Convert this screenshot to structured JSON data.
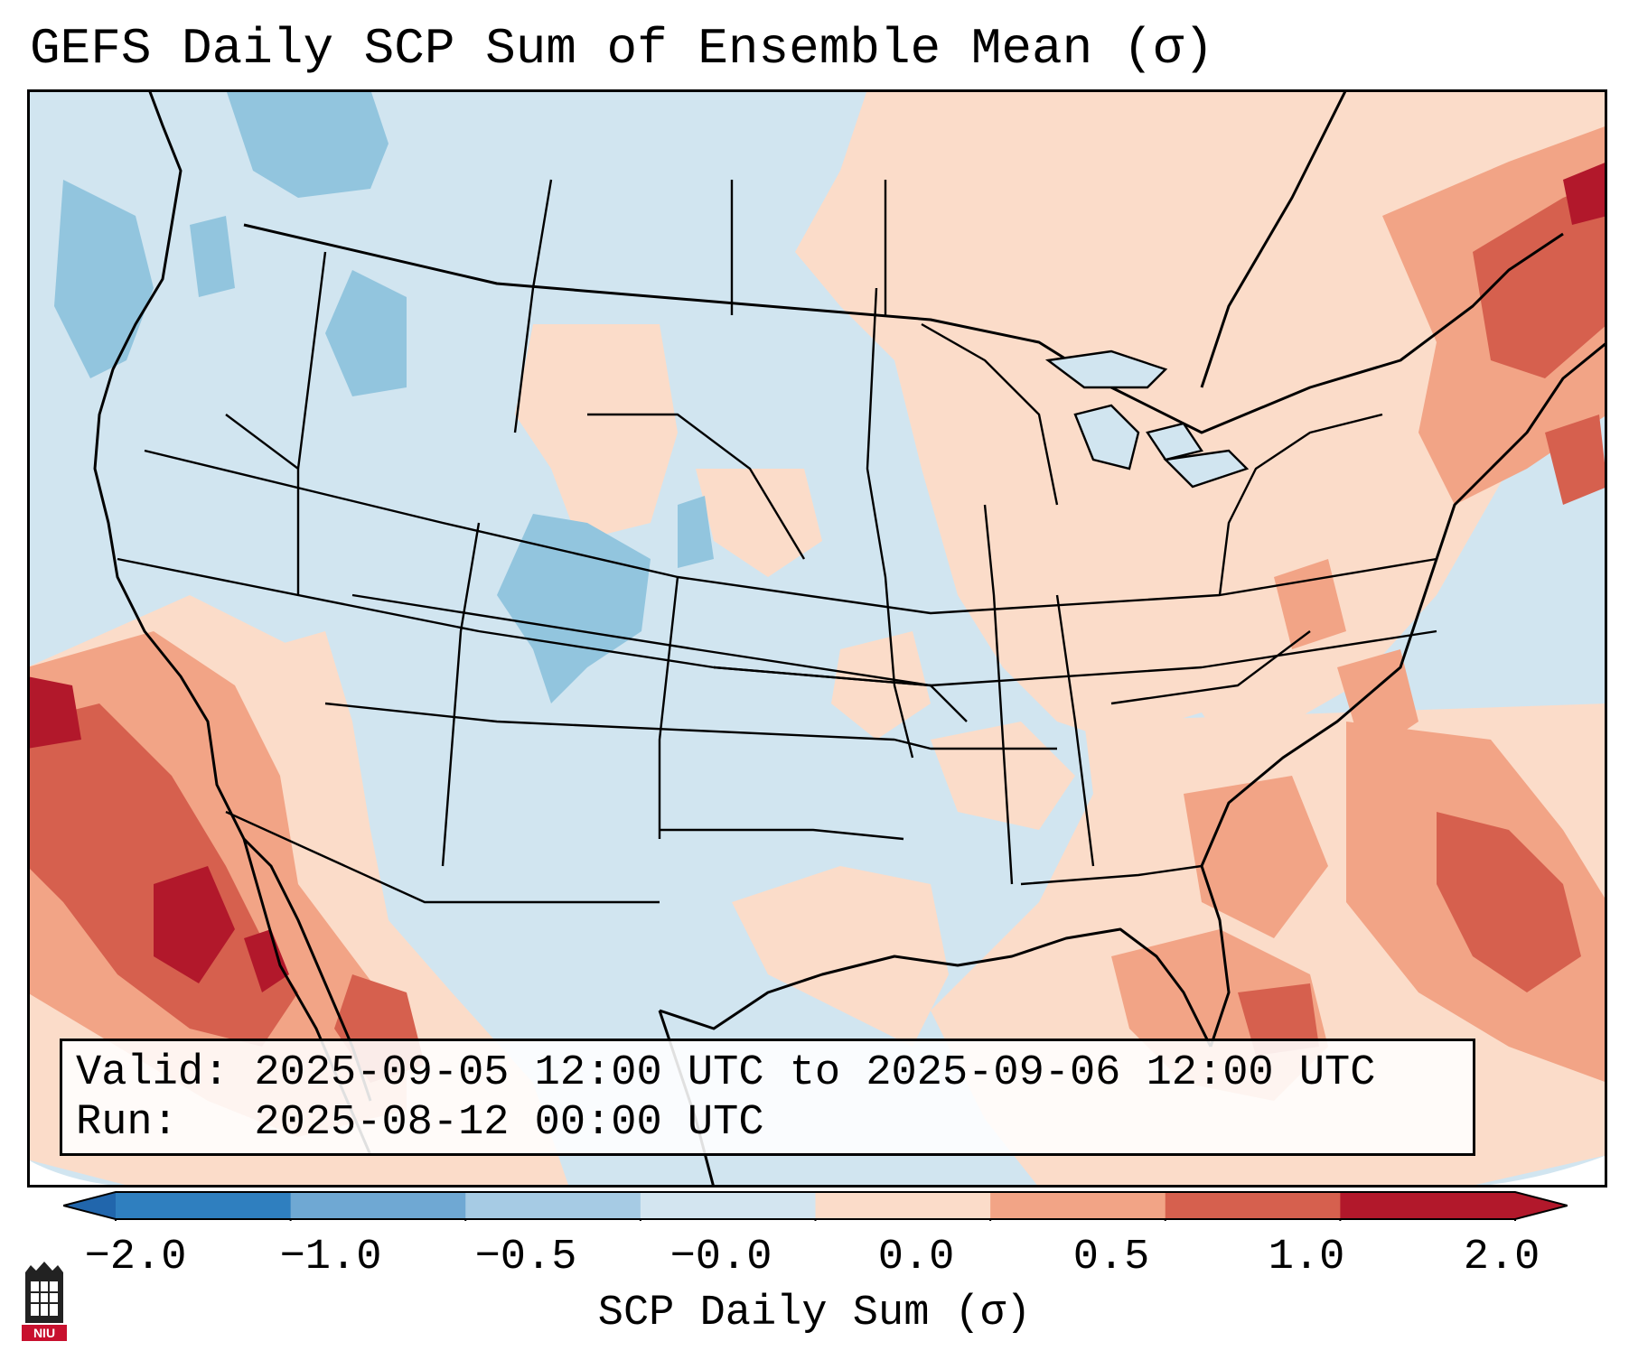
{
  "title": "GEFS Daily SCP Sum of Ensemble Mean (σ)",
  "info": {
    "valid_line": "Valid: 2025-09-05 12:00 UTC to 2025-09-06 12:00 UTC",
    "run_line": "Run:   2025-08-12 00:00 UTC"
  },
  "colorbar": {
    "label": "SCP Daily Sum (σ)",
    "ticks": [
      "−2.0",
      "−1.0",
      "−0.5",
      "−0.0",
      "0.0",
      "0.5",
      "1.0",
      "2.0"
    ],
    "bins": [
      "#2f7fbf",
      "#6fa8d3",
      "#a6cbe4",
      "#d3e5f0",
      "#fbdcc9",
      "#f2a486",
      "#d6604e",
      "#b2182b"
    ],
    "extend_low_color": "#2166ac",
    "extend_high_color": "#b2182b"
  },
  "map": {
    "background_color": "#d1e5f0",
    "coastline_color": "#000000",
    "state_line_color": "#000000"
  },
  "logo": {
    "text": "NIU",
    "icon": "niu-logo-icon"
  }
}
